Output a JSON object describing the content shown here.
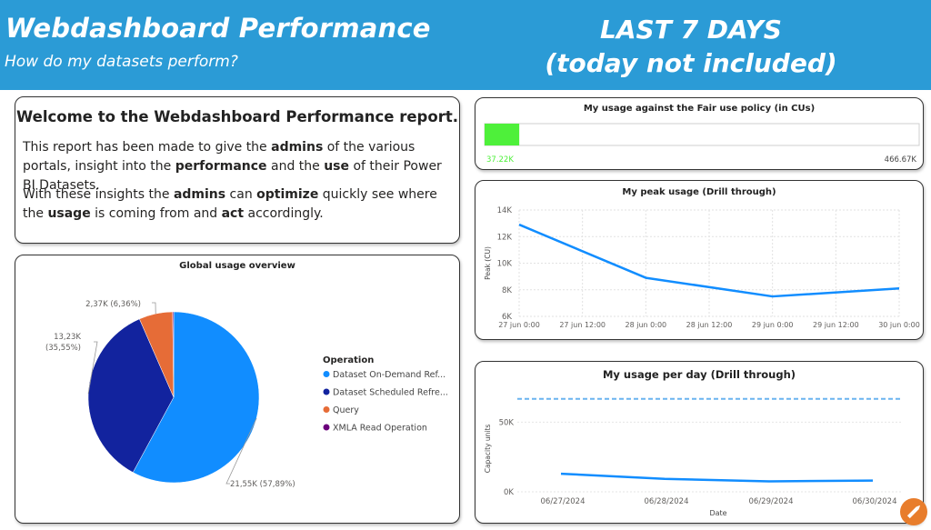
{
  "header": {
    "title": "Webdashboard Performance",
    "subtitle": "How do my datasets perform?",
    "period_line1": "LAST 7 DAYS",
    "period_line2": "(today not included)"
  },
  "welcome": {
    "title": "Welcome to the Webdashboard Performance report.",
    "p1": [
      {
        "t": "This report has been made to give the ",
        "b": false
      },
      {
        "t": "admins",
        "b": true
      },
      {
        "t": " of the various portals, insight into the ",
        "b": false
      },
      {
        "t": "performance",
        "b": true
      },
      {
        "t": " and the ",
        "b": false
      },
      {
        "t": "use",
        "b": true
      },
      {
        "t": " of their Power BI Datasets.",
        "b": false
      }
    ],
    "p2": [
      {
        "t": "With these insights the ",
        "b": false
      },
      {
        "t": "admins",
        "b": true
      },
      {
        "t": " can ",
        "b": false
      },
      {
        "t": "optimize",
        "b": true
      },
      {
        "t": " quickly see where the ",
        "b": false
      },
      {
        "t": "usage",
        "b": true
      },
      {
        "t": " is coming from and ",
        "b": false
      },
      {
        "t": "act",
        "b": true
      },
      {
        "t": " accordingly.",
        "b": false
      }
    ]
  },
  "chart_data": [
    {
      "type": "pie",
      "title": "Global usage overview",
      "legend_title": "Operation",
      "legend_position": "right",
      "slices": [
        {
          "name": "Dataset On-Demand Ref...",
          "value": 21.55,
          "percent": 57.89,
          "label": "21,55K (57,89%)",
          "color": "#118dff"
        },
        {
          "name": "Dataset Scheduled Refre...",
          "value": 13.23,
          "percent": 35.55,
          "label": "13,23K\n(35,55%)",
          "color": "#12239e"
        },
        {
          "name": "Query",
          "value": 2.37,
          "percent": 6.36,
          "label": "2,37K (6,36%)",
          "color": "#e66c37"
        },
        {
          "name": "XMLA Read Operation",
          "value": 0.07,
          "percent": 0.2,
          "label": "",
          "color": "#6b007b"
        }
      ]
    },
    {
      "type": "bar",
      "title": "My usage against the Fair use policy (in CUs)",
      "value": 37220,
      "max": 466670,
      "value_label": "37.22K",
      "max_label": "466.67K",
      "fill_color": "#4ef03a"
    },
    {
      "type": "line",
      "title": "My peak usage (Drill through)",
      "ylabel": "Peak (CU)",
      "ylim": [
        6000,
        14000
      ],
      "yticks": [
        "6K",
        "8K",
        "10K",
        "12K",
        "14K"
      ],
      "xtick_labels": [
        "27 jun 0:00",
        "27 jun 12:00",
        "28 jun 0:00",
        "28 jun 12:00",
        "29 jun 0:00",
        "29 jun 12:00",
        "30 jun 0:00"
      ],
      "grid": true,
      "series": [
        {
          "color": "#118dff",
          "points": [
            {
              "x": "27 jun 0:00",
              "y": 12900
            },
            {
              "x": "28 jun 0:00",
              "y": 8900
            },
            {
              "x": "29 jun 0:00",
              "y": 7500
            },
            {
              "x": "30 jun 0:00",
              "y": 8100
            }
          ]
        }
      ]
    },
    {
      "type": "line",
      "title": "My usage per day (Drill through)",
      "ylabel": "Capacity units",
      "xlabel": "Date",
      "ylim": [
        0,
        75000
      ],
      "yticks": [
        "0K",
        "50K"
      ],
      "xtick_labels": [
        "06/27/2024",
        "06/28/2024",
        "06/29/2024",
        "06/30/2024"
      ],
      "reference_line": 66670,
      "grid": true,
      "series": [
        {
          "color": "#118dff",
          "points": [
            {
              "x": "06/27/2024",
              "y": 13000
            },
            {
              "x": "06/28/2024",
              "y": 9300
            },
            {
              "x": "06/29/2024",
              "y": 7500
            },
            {
              "x": "06/30/2024",
              "y": 8100
            }
          ]
        }
      ]
    }
  ],
  "colors": {
    "header_bg": "#2b9bd6",
    "accent": "#118dff",
    "edit_button": "#e87d2c"
  },
  "icons": {
    "edit": "pencil-icon"
  }
}
